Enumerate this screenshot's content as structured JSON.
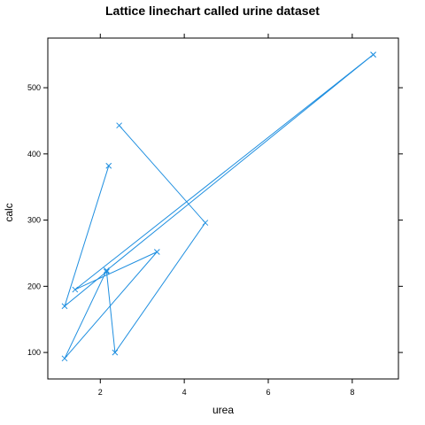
{
  "chart_data": {
    "type": "line",
    "title": "Lattice linechart called urine dataset",
    "xlabel": "urea",
    "ylabel": "calc",
    "xlim": [
      0.75,
      9.1
    ],
    "ylim": [
      60,
      575
    ],
    "xticks": [
      2,
      4,
      6,
      8
    ],
    "yticks": [
      100,
      200,
      300,
      400,
      500
    ],
    "grid": false,
    "marker": "x",
    "color": "#1f8fe0",
    "series": [
      {
        "x": [
          2.2,
          1.15,
          2.15,
          2.35,
          4.5,
          2.45
        ],
        "y": [
          382,
          170,
          222,
          100,
          296,
          443
        ]
      },
      {
        "x": [
          8.5,
          1.4,
          3.35,
          1.15,
          2.15,
          8.5
        ],
        "y": [
          550,
          195,
          252,
          91,
          224,
          550
        ]
      }
    ]
  }
}
